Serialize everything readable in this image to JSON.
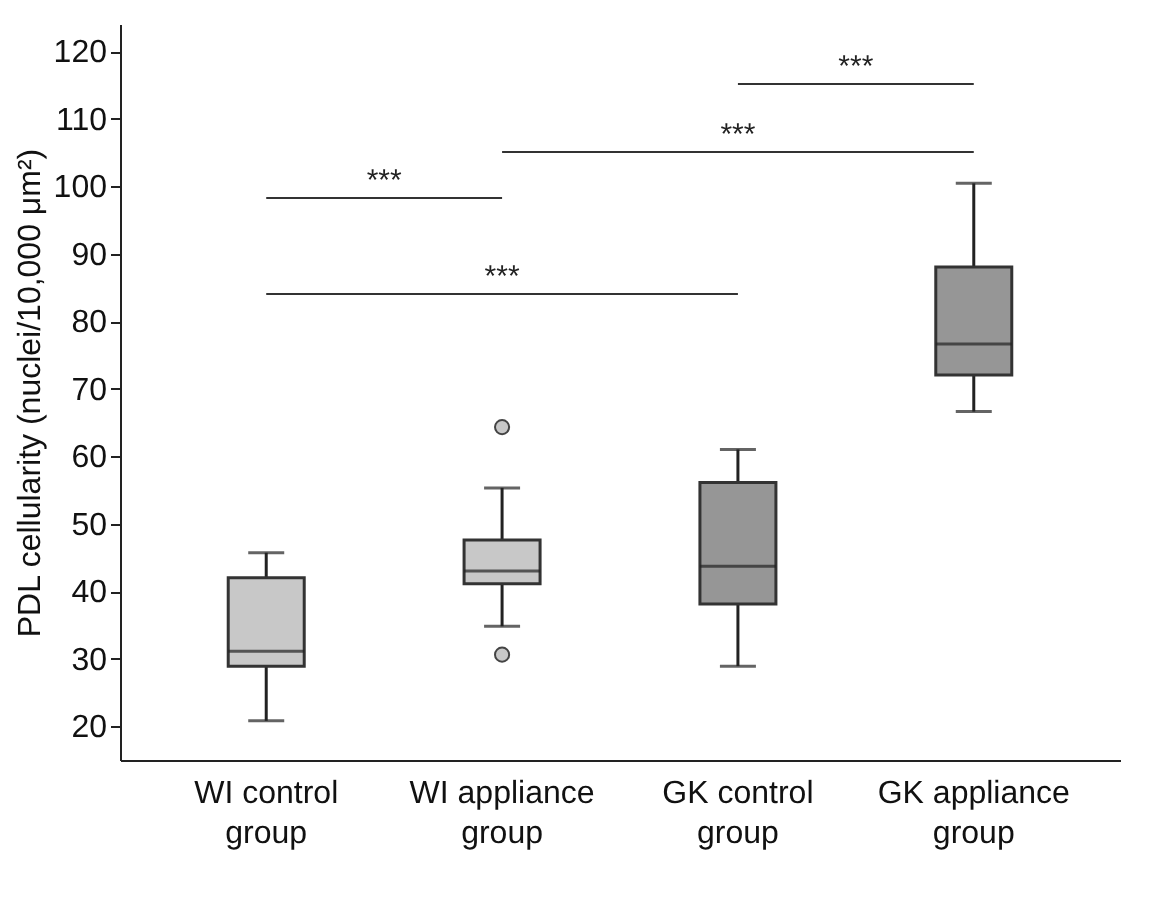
{
  "chart_data": {
    "type": "box",
    "ylabel": "PDL cellularity (nuclei/10,000 μm²)",
    "categories": [
      "WI control group",
      "WI appliance group",
      "GK control group",
      "GK appliance group"
    ],
    "colors": [
      "#c8c8c8",
      "#c8c8c8",
      "#969696",
      "#969696"
    ],
    "boxes": [
      {
        "low": 20.8,
        "q1": 28.9,
        "median": 31.1,
        "q3": 42,
        "high": 45.7
      },
      {
        "low": 34.8,
        "q1": 41.1,
        "median": 43,
        "q3": 47.6,
        "high": 55.3,
        "outliers": [
          64.3,
          30.6
        ]
      },
      {
        "low": 28.9,
        "q1": 38.1,
        "median": 43.7,
        "q3": 56.1,
        "high": 61
      },
      {
        "low": 66.6,
        "q1": 72,
        "median": 76.6,
        "q3": 88,
        "high": 100.4
      }
    ],
    "ylim": [
      15,
      124
    ],
    "yticks": [
      20,
      30,
      40,
      50,
      60,
      70,
      80,
      90,
      100,
      110,
      120
    ],
    "annotations": [
      "***",
      "***",
      "***",
      "***"
    ],
    "grid": false,
    "legend": false
  }
}
